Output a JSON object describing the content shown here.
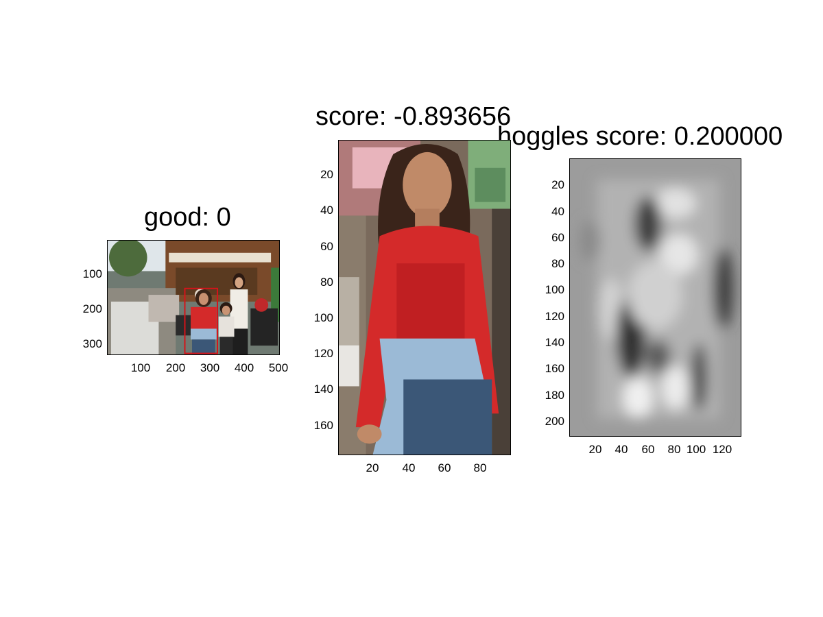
{
  "panels": [
    {
      "id": "full-image",
      "title": "good: 0",
      "y_ticks": [
        "100",
        "200",
        "300"
      ],
      "x_ticks": [
        "100",
        "200",
        "300",
        "400",
        "500"
      ],
      "x_range": [
        0,
        500
      ],
      "y_range": [
        0,
        333
      ],
      "detection_box": {
        "x": [
          225,
          320
        ],
        "y": [
          140,
          330
        ],
        "color": "#d4141a"
      }
    },
    {
      "id": "crop",
      "title": "score: -0.893656",
      "y_ticks": [
        "20",
        "40",
        "60",
        "80",
        "100",
        "120",
        "140",
        "160"
      ],
      "x_ticks": [
        "20",
        "40",
        "60",
        "80"
      ],
      "x_range": [
        0,
        96
      ],
      "y_range": [
        0,
        176
      ]
    },
    {
      "id": "hoggles",
      "title": "hoggles score: 0.200000",
      "y_ticks": [
        "20",
        "40",
        "60",
        "80",
        "100",
        "120",
        "140",
        "160",
        "180",
        "200"
      ],
      "x_ticks": [
        "20",
        "40",
        "60",
        "80",
        "100",
        "120"
      ],
      "x_range": [
        0,
        130
      ],
      "y_range": [
        0,
        212
      ]
    }
  ],
  "colors": {
    "shirt_red": "#d42a2a",
    "jeans": "#8fb0cf",
    "detection_box": "#d4141a"
  }
}
